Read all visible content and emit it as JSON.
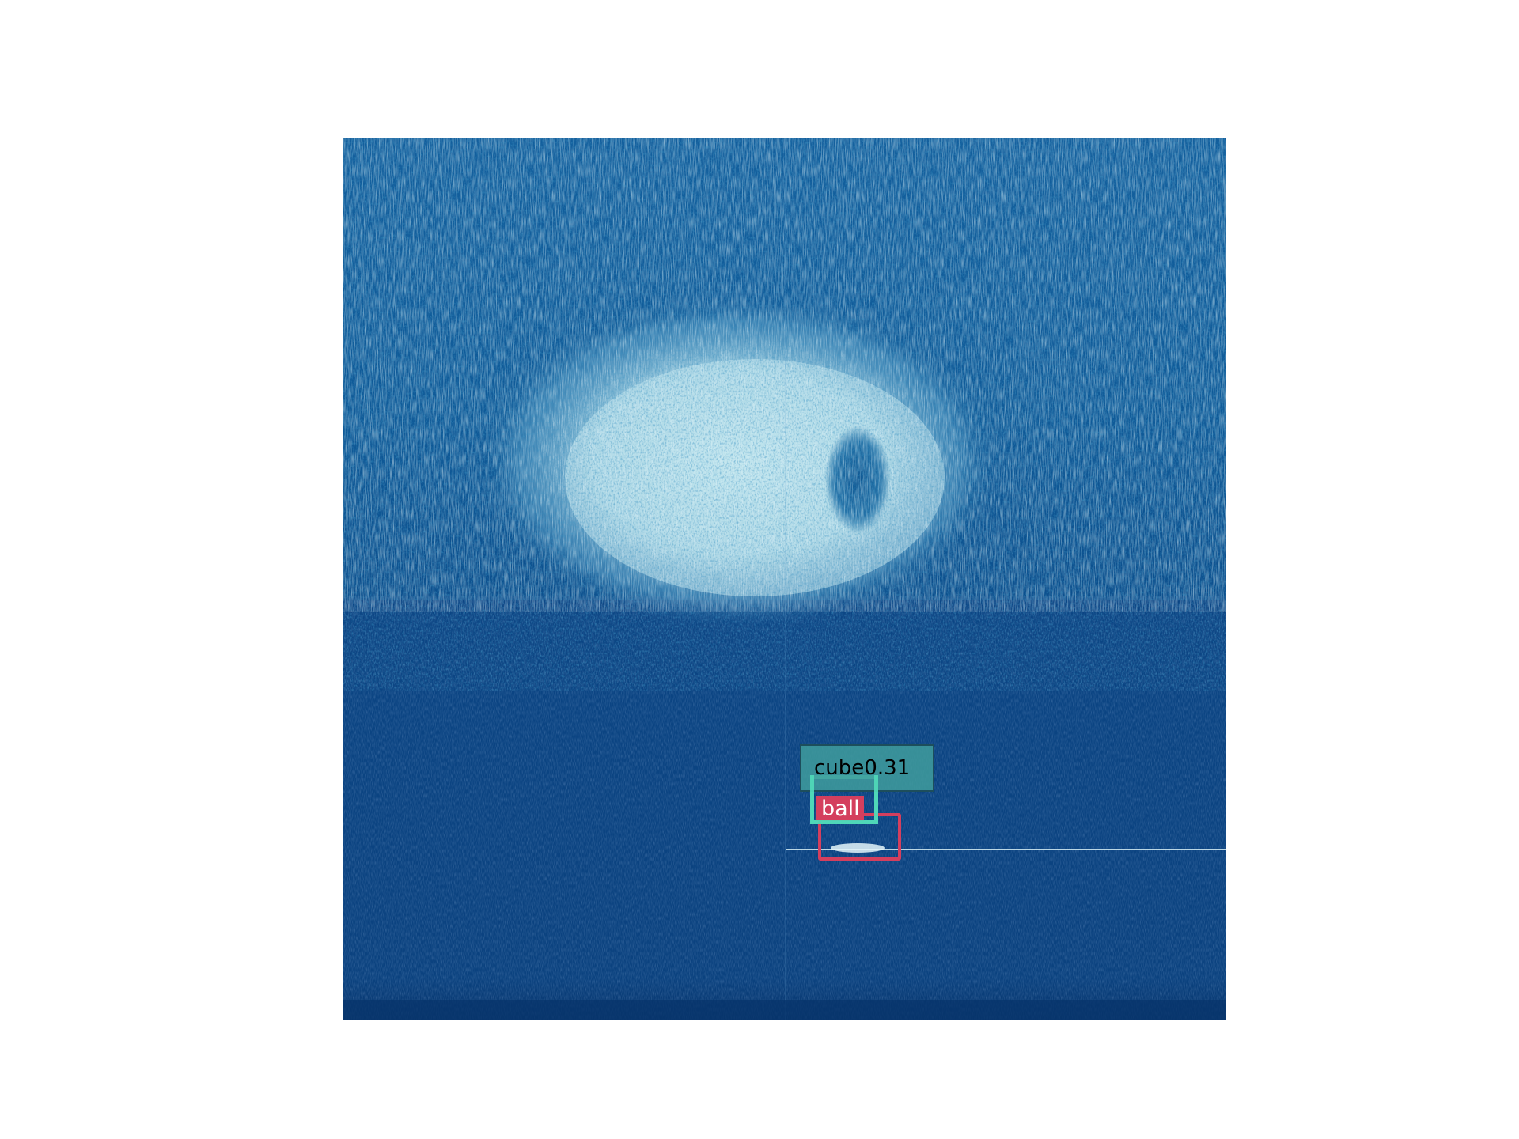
{
  "image": {
    "description_colors": {
      "water_dark": "#0b3f7c",
      "water_mid": "#0e5a96",
      "seabed_bright": "#bfe3ec",
      "return_line": "#d8f0f5"
    }
  },
  "detections": [
    {
      "label_text": "cube0.31",
      "box_color": "#4fd7b8",
      "label_bg": "#3f9c9c",
      "label_fg": "#000000"
    },
    {
      "label_text": "ball",
      "box_color": "#d43f5e",
      "label_bg": "#d43f5e",
      "label_fg": "#ffffff"
    }
  ]
}
